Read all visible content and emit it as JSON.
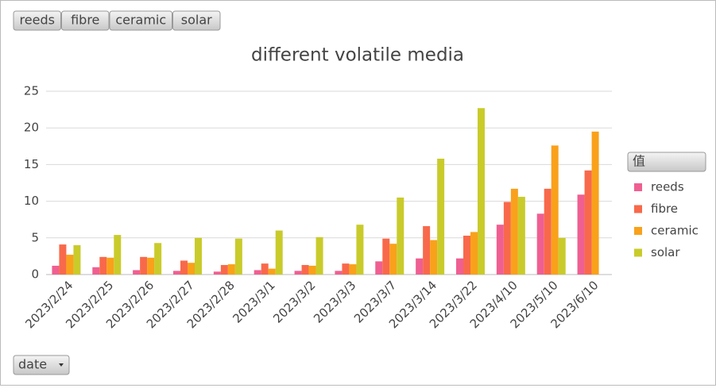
{
  "chart_data": {
    "type": "bar",
    "title": "different volatile media",
    "categories": [
      "2023/2/24",
      "2023/2/25",
      "2023/2/26",
      "2023/2/27",
      "2023/2/28",
      "2023/3/1",
      "2023/3/2",
      "2023/3/3",
      "2023/3/7",
      "2023/3/14",
      "2023/3/22",
      "2023/4/10",
      "2023/5/10",
      "2023/6/10"
    ],
    "series": [
      {
        "name": "reeds",
        "color": "#ef5f91",
        "values": [
          1.2,
          1.0,
          0.6,
          0.5,
          0.4,
          0.6,
          0.5,
          0.5,
          1.8,
          2.2,
          2.2,
          6.8,
          8.3,
          10.9
        ]
      },
      {
        "name": "fibre",
        "color": "#f8694b",
        "values": [
          4.1,
          2.4,
          2.4,
          1.9,
          1.3,
          1.5,
          1.3,
          1.5,
          4.9,
          6.6,
          5.3,
          9.9,
          11.7,
          14.2
        ]
      },
      {
        "name": "ceramic",
        "color": "#f9a11b",
        "values": [
          2.7,
          2.3,
          2.3,
          1.6,
          1.4,
          0.8,
          1.2,
          1.4,
          4.2,
          4.7,
          5.8,
          11.7,
          17.6,
          19.5
        ]
      },
      {
        "name": "solar",
        "color": "#c9cb2b",
        "values": [
          4.0,
          5.4,
          4.3,
          5.0,
          4.9,
          6.0,
          5.1,
          6.8,
          10.5,
          15.8,
          22.7,
          10.6,
          5.0,
          null
        ]
      }
    ],
    "ylim": [
      0,
      25
    ],
    "yticks": [
      0,
      5,
      10,
      15,
      20,
      25
    ],
    "grid": true,
    "legend_title": "值",
    "x_field": "date"
  }
}
